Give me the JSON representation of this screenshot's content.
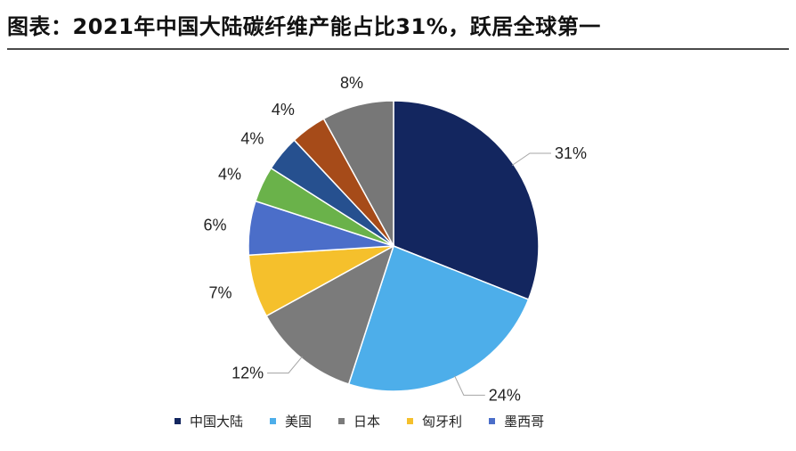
{
  "title": "图表：2021年中国大陆碳纤维产能占比31%，跃居全球第一",
  "chart_data": {
    "type": "pie",
    "slices": [
      {
        "name": "中国大陆",
        "value": 31,
        "label": "31%",
        "color": "#13265f"
      },
      {
        "name": "美国",
        "value": 24,
        "label": "24%",
        "color": "#4daeea"
      },
      {
        "name": "日本",
        "value": 12,
        "label": "12%",
        "color": "#7b7b7b"
      },
      {
        "name": "匈牙利",
        "value": 7,
        "label": "7%",
        "color": "#f5c02c"
      },
      {
        "name": "墨西哥",
        "value": 6,
        "label": "6%",
        "color": "#4b6ec9"
      },
      {
        "name": "",
        "value": 4,
        "label": "4%",
        "color": "#6ab24a"
      },
      {
        "name": "",
        "value": 4,
        "label": "4%",
        "color": "#26508f"
      },
      {
        "name": "",
        "value": 4,
        "label": "4%",
        "color": "#a64b19"
      },
      {
        "name": "",
        "value": 8,
        "label": "8%",
        "color": "#777777"
      }
    ],
    "legend": {
      "position": "bottom",
      "entries": [
        "中国大陆",
        "美国",
        "日本",
        "匈牙利",
        "墨西哥"
      ]
    }
  }
}
